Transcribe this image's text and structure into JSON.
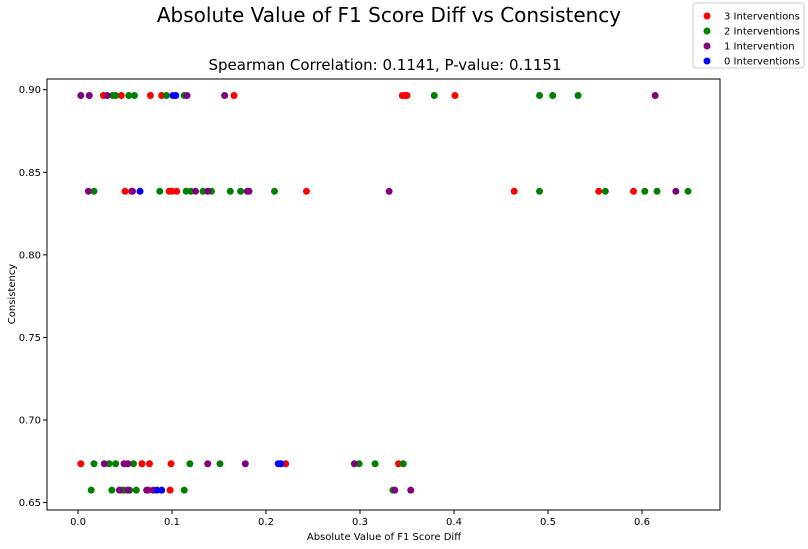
{
  "chart_data": {
    "type": "scatter",
    "title": "Absolute Value of F1 Score Diff vs Consistency",
    "subtitle": "Spearman Correlation: 0.1141, P-value: 0.1151",
    "xlabel": "Absolute Value of F1 Score Diff",
    "ylabel": "Consistency",
    "xlim": [
      -0.033,
      0.683
    ],
    "ylim": [
      0.6455,
      0.9065
    ],
    "xticks": [
      0.0,
      0.1,
      0.2,
      0.3,
      0.4,
      0.5,
      0.6
    ],
    "xtick_labels": [
      "0.0",
      "0.1",
      "0.2",
      "0.3",
      "0.4",
      "0.5",
      "0.6"
    ],
    "yticks": [
      0.65,
      0.7,
      0.75,
      0.8,
      0.85,
      0.9
    ],
    "ytick_labels": [
      "0.65",
      "0.70",
      "0.75",
      "0.80",
      "0.85",
      "0.90"
    ],
    "grid": false,
    "legend_position": "top-right",
    "series": [
      {
        "name": "3 Interventions",
        "color": "#ff0000",
        "points": [
          [
            0.027,
            0.8965
          ],
          [
            0.046,
            0.8965
          ],
          [
            0.077,
            0.8965
          ],
          [
            0.089,
            0.8965
          ],
          [
            0.166,
            0.8965
          ],
          [
            0.345,
            0.8965
          ],
          [
            0.348,
            0.8965
          ],
          [
            0.35,
            0.8965
          ],
          [
            0.401,
            0.8965
          ],
          [
            0.05,
            0.8385
          ],
          [
            0.057,
            0.8385
          ],
          [
            0.097,
            0.8385
          ],
          [
            0.1,
            0.8385
          ],
          [
            0.105,
            0.8385
          ],
          [
            0.243,
            0.8385
          ],
          [
            0.464,
            0.8385
          ],
          [
            0.554,
            0.8385
          ],
          [
            0.591,
            0.8385
          ],
          [
            0.003,
            0.6735
          ],
          [
            0.068,
            0.6735
          ],
          [
            0.076,
            0.6735
          ],
          [
            0.099,
            0.6735
          ],
          [
            0.221,
            0.6735
          ],
          [
            0.341,
            0.6735
          ],
          [
            0.047,
            0.6575
          ],
          [
            0.075,
            0.6575
          ],
          [
            0.098,
            0.6575
          ]
        ]
      },
      {
        "name": "2 Interventions",
        "color": "#008000",
        "points": [
          [
            0.037,
            0.8965
          ],
          [
            0.04,
            0.8965
          ],
          [
            0.054,
            0.8965
          ],
          [
            0.06,
            0.8965
          ],
          [
            0.094,
            0.8965
          ],
          [
            0.113,
            0.8965
          ],
          [
            0.379,
            0.8965
          ],
          [
            0.491,
            0.8965
          ],
          [
            0.505,
            0.8965
          ],
          [
            0.532,
            0.8965
          ],
          [
            0.017,
            0.8385
          ],
          [
            0.087,
            0.8385
          ],
          [
            0.115,
            0.8385
          ],
          [
            0.12,
            0.8385
          ],
          [
            0.133,
            0.8385
          ],
          [
            0.142,
            0.8385
          ],
          [
            0.162,
            0.8385
          ],
          [
            0.173,
            0.8385
          ],
          [
            0.209,
            0.8385
          ],
          [
            0.491,
            0.8385
          ],
          [
            0.561,
            0.8385
          ],
          [
            0.603,
            0.8385
          ],
          [
            0.616,
            0.8385
          ],
          [
            0.649,
            0.8385
          ],
          [
            0.017,
            0.6735
          ],
          [
            0.033,
            0.6735
          ],
          [
            0.04,
            0.6735
          ],
          [
            0.059,
            0.6735
          ],
          [
            0.119,
            0.6735
          ],
          [
            0.151,
            0.6735
          ],
          [
            0.299,
            0.6735
          ],
          [
            0.316,
            0.6735
          ],
          [
            0.346,
            0.6735
          ],
          [
            0.014,
            0.6575
          ],
          [
            0.036,
            0.6575
          ],
          [
            0.049,
            0.6575
          ],
          [
            0.055,
            0.6575
          ],
          [
            0.062,
            0.6575
          ],
          [
            0.113,
            0.6575
          ],
          [
            0.335,
            0.6575
          ]
        ]
      },
      {
        "name": "1 Intervention",
        "color": "#800080",
        "points": [
          [
            0.003,
            0.8965
          ],
          [
            0.012,
            0.8965
          ],
          [
            0.031,
            0.8965
          ],
          [
            0.116,
            0.8965
          ],
          [
            0.156,
            0.8965
          ],
          [
            0.614,
            0.8965
          ],
          [
            0.011,
            0.8385
          ],
          [
            0.058,
            0.8385
          ],
          [
            0.125,
            0.8385
          ],
          [
            0.138,
            0.8385
          ],
          [
            0.18,
            0.8385
          ],
          [
            0.182,
            0.8385
          ],
          [
            0.331,
            0.8385
          ],
          [
            0.636,
            0.8385
          ],
          [
            0.028,
            0.6735
          ],
          [
            0.049,
            0.6735
          ],
          [
            0.053,
            0.6735
          ],
          [
            0.138,
            0.6735
          ],
          [
            0.178,
            0.6735
          ],
          [
            0.294,
            0.6735
          ],
          [
            0.044,
            0.6575
          ],
          [
            0.053,
            0.6575
          ],
          [
            0.073,
            0.6575
          ],
          [
            0.08,
            0.6575
          ],
          [
            0.337,
            0.6575
          ],
          [
            0.354,
            0.6575
          ]
        ]
      },
      {
        "name": "0 Interventions",
        "color": "#0000ff",
        "points": [
          [
            0.101,
            0.8965
          ],
          [
            0.104,
            0.8965
          ],
          [
            0.066,
            0.8385
          ],
          [
            0.213,
            0.6735
          ],
          [
            0.216,
            0.6735
          ],
          [
            0.084,
            0.6575
          ],
          [
            0.089,
            0.6575
          ]
        ]
      }
    ]
  }
}
